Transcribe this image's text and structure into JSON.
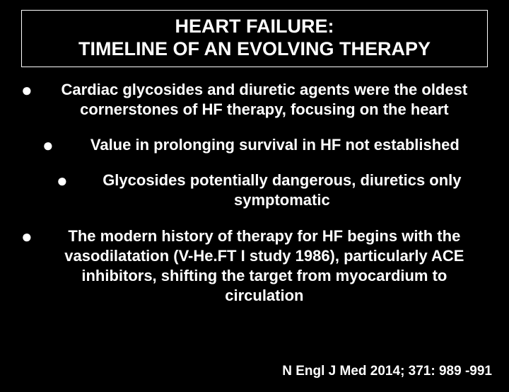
{
  "title": {
    "line1": "HEART FAILURE:",
    "line2": "TIMELINE OF AN EVOLVING THERAPY"
  },
  "bullets": [
    {
      "level": 1,
      "text": "Cardiac glycosides and diuretic agents were the oldest cornerstones of HF therapy, focusing on the heart"
    },
    {
      "level": 2,
      "text": "Value in prolonging survival in HF not established"
    },
    {
      "level": 3,
      "text": "Glycosides potentially dangerous, diuretics only symptomatic"
    },
    {
      "level": 1,
      "text": "The modern history of therapy for HF begins with the vasodilatation (V-He.FT I study 1986), particularly ACE inhibitors, shifting the target from myocardium to circulation"
    }
  ],
  "citation": "N Engl J Med 2014; 371: 989 -991",
  "styles": {
    "background": "#000000",
    "text_color": "#ffffff",
    "title_fontsize": 27,
    "body_fontsize": 22,
    "citation_fontsize": 19,
    "font_weight": "bold",
    "bullet_char": "●"
  }
}
